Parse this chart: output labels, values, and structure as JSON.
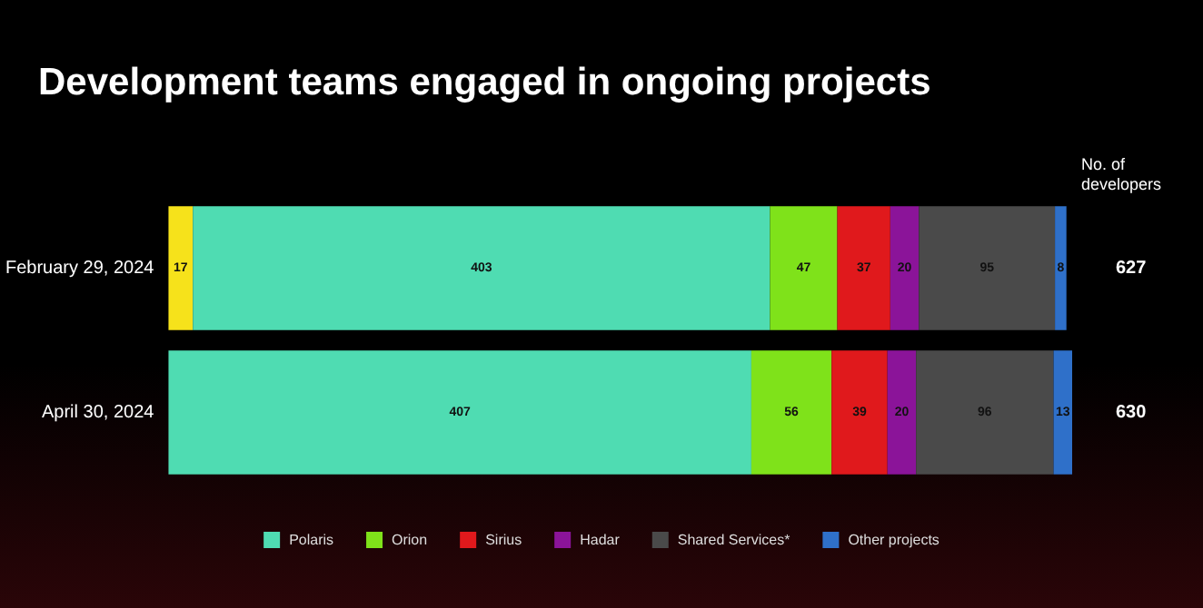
{
  "chart_data": {
    "type": "bar",
    "orientation": "horizontal",
    "stacked": true,
    "title": "Development teams engaged in ongoing projects",
    "categories": [
      "February 29, 2024",
      "April 30, 2024"
    ],
    "series": [
      {
        "color": "#f6e21b",
        "values": [
          17,
          null
        ]
      },
      {
        "name": "Polaris",
        "color": "#4fdcb2",
        "values": [
          403,
          407
        ]
      },
      {
        "name": "Orion",
        "color": "#7fe21a",
        "values": [
          47,
          56
        ]
      },
      {
        "name": "Sirius",
        "color": "#e0191c",
        "values": [
          37,
          39
        ]
      },
      {
        "name": "Hadar",
        "color": "#8b1499",
        "values": [
          20,
          20
        ]
      },
      {
        "name": "Shared Services*",
        "color": "#4a4a4a",
        "values": [
          95,
          96
        ]
      },
      {
        "name": "Other projects",
        "color": "#2f70c9",
        "values": [
          8,
          13
        ]
      }
    ],
    "data_labels": true,
    "totals": [
      "627",
      "630"
    ],
    "annotations": [
      "No. of developers"
    ],
    "legend": "bottom",
    "grid": false
  }
}
